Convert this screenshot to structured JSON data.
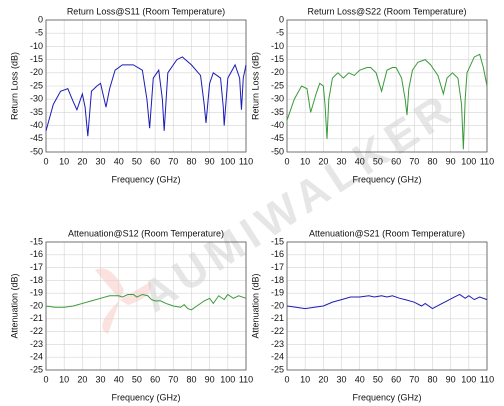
{
  "watermark": "AUMIWALKER",
  "chart_data": [
    {
      "type": "line",
      "title": "Return Loss@S11 (Room Temperature)",
      "x_label": "Frequency (GHz)",
      "y_label": "Return Loss (dB)",
      "xlim": [
        0,
        110
      ],
      "xticks": [
        0,
        10,
        20,
        30,
        40,
        50,
        60,
        70,
        80,
        90,
        100,
        110
      ],
      "ylim": [
        -50,
        0
      ],
      "yticks": [
        0,
        -5,
        -10,
        -15,
        -20,
        -25,
        -30,
        -35,
        -40,
        -45,
        -50
      ],
      "grid": true,
      "x": [
        0,
        4,
        8,
        12,
        15,
        17,
        20,
        21.5,
        23,
        25,
        28,
        30,
        32,
        33,
        35,
        38,
        42,
        48,
        53,
        55.5,
        57,
        59,
        62,
        64,
        65,
        67,
        72,
        75,
        80,
        85,
        87,
        88,
        90,
        92,
        96,
        97.5,
        98,
        100,
        104,
        106.5,
        107.5,
        108.5,
        110
      ],
      "series": [
        {
          "color": "#1c1cb8",
          "values": [
            -42,
            -32,
            -27,
            -26,
            -31,
            -34,
            -28,
            -33,
            -44,
            -27,
            -25,
            -24,
            -30,
            -33,
            -26,
            -19,
            -17,
            -17,
            -19,
            -30,
            -41,
            -22,
            -19,
            -30,
            -42,
            -20,
            -15,
            -14,
            -17,
            -21,
            -32,
            -39,
            -24,
            -20,
            -22,
            -33,
            -40,
            -22,
            -17,
            -22,
            -34,
            -22,
            -17
          ]
        }
      ]
    },
    {
      "type": "line",
      "title": "Return Loss@S22 (Room Temperature)",
      "x_label": "Frequency (GHz)",
      "y_label": "Return Loss (dB)",
      "xlim": [
        0,
        110
      ],
      "xticks": [
        0,
        10,
        20,
        30,
        40,
        50,
        60,
        70,
        80,
        90,
        100,
        110
      ],
      "ylim": [
        -50,
        0
      ],
      "yticks": [
        0,
        -5,
        -10,
        -15,
        -20,
        -25,
        -30,
        -35,
        -40,
        -45,
        -50
      ],
      "grid": true,
      "x": [
        0,
        4,
        8,
        11,
        13,
        16,
        18,
        20,
        21,
        22,
        23,
        25,
        28,
        31,
        34,
        37,
        40,
        44,
        46,
        49,
        52,
        55,
        58,
        60,
        63,
        65,
        66,
        67,
        69,
        72,
        76,
        79,
        83,
        86,
        88,
        91,
        94,
        96,
        97,
        98,
        99,
        103,
        106,
        108,
        110
      ],
      "series": [
        {
          "color": "#3a9a3a",
          "values": [
            -38,
            -30,
            -25,
            -26,
            -35,
            -28,
            -24,
            -25,
            -33,
            -45,
            -30,
            -22,
            -20,
            -22,
            -20,
            -21,
            -19,
            -18,
            -18,
            -20,
            -27,
            -19,
            -18,
            -18,
            -22,
            -30,
            -36,
            -26,
            -19,
            -16,
            -15,
            -17,
            -21,
            -28,
            -22,
            -20,
            -22,
            -32,
            -49,
            -30,
            -20,
            -14,
            -13,
            -18,
            -25
          ]
        }
      ]
    },
    {
      "type": "line",
      "title": "Attenuation@S12 (Room Temperature)",
      "x_label": "Frequency (GHz)",
      "y_label": "Attenuation (dB)",
      "xlim": [
        0,
        110
      ],
      "xticks": [
        0,
        10,
        20,
        30,
        40,
        50,
        60,
        70,
        80,
        90,
        100,
        110
      ],
      "ylim": [
        -25,
        -15
      ],
      "yticks": [
        -15,
        -16,
        -17,
        -18,
        -19,
        -20,
        -21,
        -22,
        -23,
        -24,
        -25
      ],
      "grid": true,
      "x": [
        0,
        5,
        10,
        15,
        20,
        25,
        30,
        35,
        40,
        42,
        45,
        48,
        50,
        53,
        56,
        58,
        60,
        63,
        66,
        70,
        74,
        76,
        78,
        80,
        83,
        87,
        90,
        92,
        95,
        98,
        100,
        103,
        106,
        110
      ],
      "series": [
        {
          "color": "#3a9a3a",
          "values": [
            -20.0,
            -20.1,
            -20.1,
            -20.0,
            -19.8,
            -19.6,
            -19.4,
            -19.2,
            -19.2,
            -19.3,
            -19.1,
            -19.1,
            -19.3,
            -19.1,
            -19.2,
            -19.5,
            -19.6,
            -19.6,
            -19.8,
            -20.0,
            -20.1,
            -19.9,
            -20.2,
            -20.3,
            -20.0,
            -19.6,
            -19.4,
            -19.8,
            -19.2,
            -19.5,
            -19.1,
            -19.4,
            -19.2,
            -19.4
          ]
        }
      ]
    },
    {
      "type": "line",
      "title": "Attenuation@S21 (Room Temperature)",
      "x_label": "Frequency (GHz)",
      "y_label": "Attenuation (dB)",
      "xlim": [
        0,
        110
      ],
      "xticks": [
        0,
        10,
        20,
        30,
        40,
        50,
        60,
        70,
        80,
        90,
        100,
        110
      ],
      "ylim": [
        -25,
        -15
      ],
      "yticks": [
        -15,
        -16,
        -17,
        -18,
        -19,
        -20,
        -21,
        -22,
        -23,
        -24,
        -25
      ],
      "grid": true,
      "x": [
        0,
        5,
        10,
        15,
        20,
        25,
        30,
        35,
        40,
        45,
        48,
        52,
        55,
        58,
        62,
        65,
        70,
        74,
        76,
        80,
        84,
        88,
        92,
        95,
        98,
        100,
        103,
        106,
        110
      ],
      "series": [
        {
          "color": "#1c1cb8",
          "values": [
            -20.0,
            -20.1,
            -20.2,
            -20.1,
            -20.0,
            -19.7,
            -19.5,
            -19.3,
            -19.3,
            -19.2,
            -19.3,
            -19.2,
            -19.3,
            -19.2,
            -19.4,
            -19.5,
            -19.7,
            -20.0,
            -19.8,
            -20.2,
            -19.9,
            -19.6,
            -19.3,
            -19.1,
            -19.4,
            -19.2,
            -19.5,
            -19.3,
            -19.5
          ]
        }
      ]
    }
  ]
}
